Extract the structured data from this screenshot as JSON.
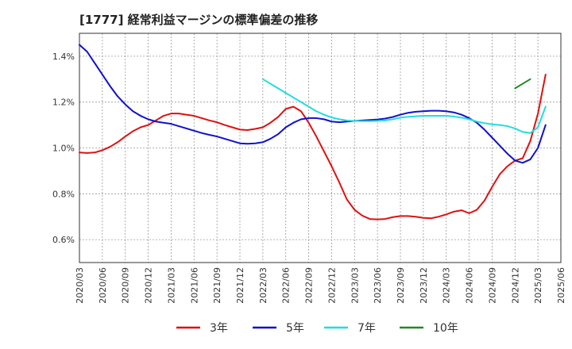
{
  "chart_data": {
    "type": "line",
    "title": "[1777]  経常利益マージンの標準偏差の推移",
    "xlabel": "",
    "ylabel": "",
    "y_ticks": [
      "1.4%",
      "1.2%",
      "1.0%",
      "0.8%",
      "0.6%"
    ],
    "y_tick_values": [
      1.4,
      1.2,
      1.0,
      0.8,
      0.6
    ],
    "ylim": [
      0.5,
      1.5
    ],
    "x_ticks": [
      "2020/03",
      "2020/06",
      "2020/09",
      "2020/12",
      "2021/03",
      "2021/06",
      "2021/09",
      "2021/12",
      "2022/03",
      "2022/06",
      "2022/09",
      "2022/12",
      "2023/03",
      "2023/06",
      "2023/09",
      "2023/12",
      "2024/03",
      "2024/06",
      "2024/09",
      "2024/12",
      "2025/03",
      "2025/06"
    ],
    "grid": true,
    "legend_position": "bottom",
    "series": [
      {
        "name": "3年",
        "color": "#dd1111",
        "start": "2020/03",
        "values": [
          0.98,
          0.978,
          0.98,
          0.99,
          1.005,
          1.025,
          1.05,
          1.073,
          1.09,
          1.1,
          1.12,
          1.14,
          1.15,
          1.15,
          1.145,
          1.14,
          1.13,
          1.12,
          1.112,
          1.1,
          1.09,
          1.08,
          1.078,
          1.083,
          1.09,
          1.11,
          1.135,
          1.17,
          1.18,
          1.16,
          1.11,
          1.05,
          0.985,
          0.92,
          0.85,
          0.775,
          0.73,
          0.705,
          0.69,
          0.688,
          0.69,
          0.698,
          0.703,
          0.703,
          0.7,
          0.695,
          0.693,
          0.7,
          0.71,
          0.722,
          0.728,
          0.715,
          0.73,
          0.77,
          0.83,
          0.885,
          0.92,
          0.945,
          0.955,
          1.03,
          1.15,
          1.32
        ]
      },
      {
        "name": "5年",
        "color": "#1111cc",
        "start": "2020/03",
        "values": [
          1.45,
          1.42,
          1.37,
          1.32,
          1.27,
          1.225,
          1.19,
          1.16,
          1.14,
          1.125,
          1.115,
          1.11,
          1.105,
          1.095,
          1.085,
          1.075,
          1.065,
          1.057,
          1.05,
          1.04,
          1.03,
          1.02,
          1.018,
          1.02,
          1.025,
          1.04,
          1.06,
          1.09,
          1.11,
          1.125,
          1.13,
          1.13,
          1.125,
          1.115,
          1.112,
          1.115,
          1.118,
          1.12,
          1.122,
          1.124,
          1.128,
          1.135,
          1.145,
          1.153,
          1.158,
          1.16,
          1.162,
          1.162,
          1.16,
          1.155,
          1.145,
          1.13,
          1.11,
          1.08,
          1.045,
          1.01,
          0.975,
          0.945,
          0.935,
          0.95,
          1.0,
          1.1
        ]
      },
      {
        "name": "7年",
        "color": "#22dddd",
        "start": "2022/03",
        "values": [
          1.3,
          1.28,
          1.26,
          1.24,
          1.22,
          1.2,
          1.18,
          1.16,
          1.145,
          1.133,
          1.125,
          1.12,
          1.118,
          1.117,
          1.117,
          1.118,
          1.12,
          1.125,
          1.132,
          1.136,
          1.138,
          1.14,
          1.14,
          1.14,
          1.14,
          1.137,
          1.132,
          1.125,
          1.115,
          1.108,
          1.103,
          1.1,
          1.095,
          1.085,
          1.07,
          1.065,
          1.09,
          1.18
        ]
      },
      {
        "name": "10年",
        "color": "#228822",
        "start": "2024/12",
        "values": [
          1.26,
          1.28,
          1.3
        ]
      }
    ]
  }
}
